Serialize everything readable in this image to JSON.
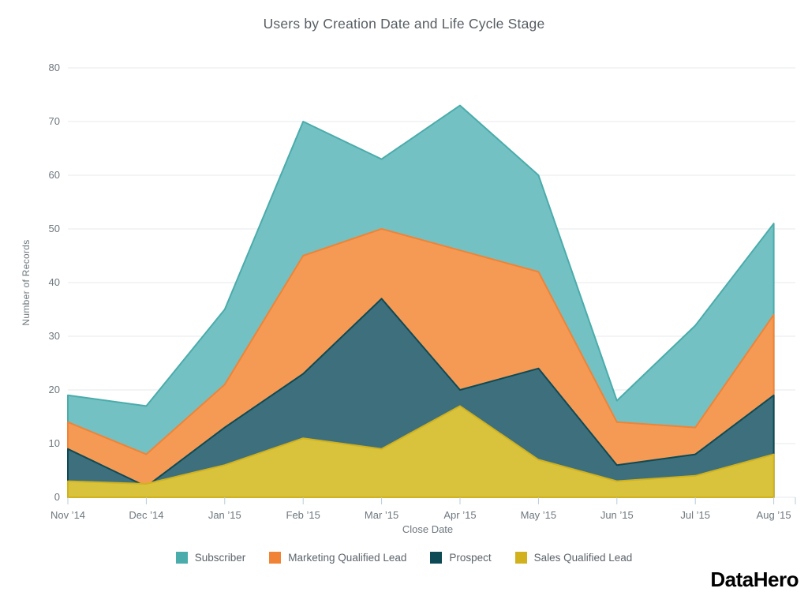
{
  "title": "Users by Creation Date and Life Cycle Stage",
  "branding": {
    "logo_text": "DataHero"
  },
  "style": {
    "title_color": "#575e63",
    "tick_text_color": "#6e777e",
    "legend_text_color": "#5c646b",
    "grid_color": "#e4e9eb",
    "tick_mark_color": "#b7ccd4",
    "background": "#ffffff"
  },
  "chart_data": {
    "type": "area",
    "stacked": false,
    "title": "Users by Creation Date and Life Cycle Stage",
    "xlabel": "Close Date",
    "ylabel": "Number of Records",
    "ylim": [
      0,
      80
    ],
    "ytick_step": 10,
    "grid": true,
    "legend_position": "bottom",
    "categories": [
      "Nov ’14",
      "Dec ’14",
      "Jan ’15",
      "Feb ’15",
      "Mar ’15",
      "Apr ’15",
      "May ’15",
      "Jun ’15",
      "Jul ’15",
      "Aug ’15"
    ],
    "series": [
      {
        "name": "Subscriber",
        "stroke": "#4aacab",
        "fill": "#74c1c3",
        "values": [
          19,
          17,
          35,
          70,
          63,
          73,
          60,
          18,
          32,
          51
        ]
      },
      {
        "name": "Marketing Qualified Lead",
        "stroke": "#f08336",
        "fill": "#f59a55",
        "values": [
          14,
          8,
          21,
          45,
          50,
          46,
          42,
          14,
          13,
          34
        ]
      },
      {
        "name": "Prospect",
        "stroke": "#0d4a55",
        "fill": "#3d6f7d",
        "values": [
          9,
          2,
          13,
          23,
          37,
          20,
          24,
          6,
          8,
          19
        ]
      },
      {
        "name": "Sales Qualified Lead",
        "stroke": "#d1b11e",
        "fill": "#d9c33c",
        "values": [
          3,
          2.5,
          6,
          11,
          9,
          17,
          7,
          3,
          4,
          8
        ]
      }
    ]
  }
}
